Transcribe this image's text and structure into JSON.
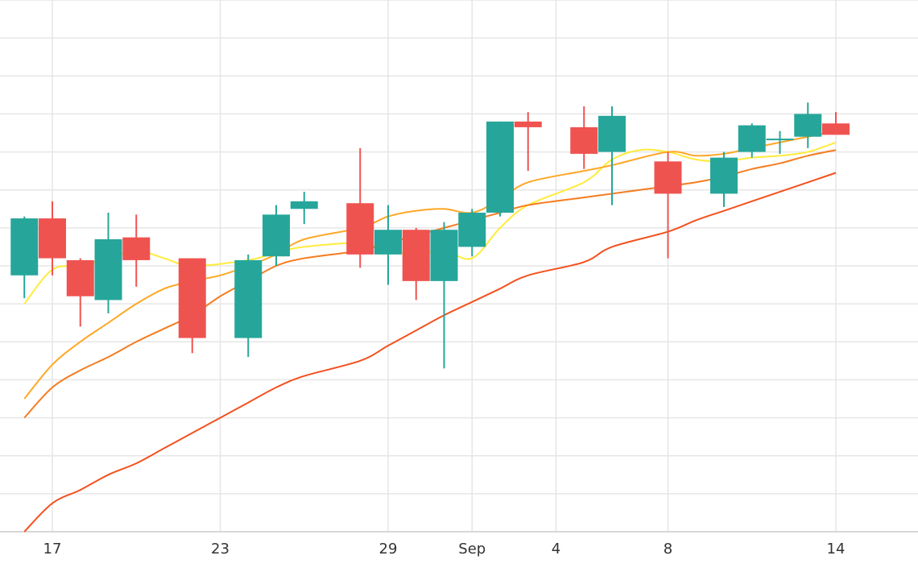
{
  "chart_data": {
    "type": "candlestick",
    "x_ticks": [
      "17",
      "23",
      "29",
      "Sep",
      "4",
      "8",
      "14"
    ],
    "x_tick_dates": [
      "2023-08-17",
      "2023-08-23",
      "2023-08-29",
      "2023-09-01",
      "2023-09-04",
      "2023-09-08",
      "2023-09-14"
    ],
    "ylim": [
      0,
      14
    ],
    "grid": true,
    "colors": {
      "up": "#26a69a",
      "down": "#ef5350",
      "grid": "#e6e6e6",
      "ma_fast": "#ffeb3b",
      "ma_mid": "#ffa726",
      "ma_slow": "#f57c1f",
      "ma_slowest": "#f4511e"
    },
    "candles": [
      {
        "date": "2023-08-16",
        "open": 6.75,
        "high": 8.3,
        "low": 6.15,
        "close": 8.25
      },
      {
        "date": "2023-08-17",
        "open": 8.25,
        "high": 8.7,
        "low": 6.75,
        "close": 7.2
      },
      {
        "date": "2023-08-18",
        "open": 7.15,
        "high": 7.2,
        "low": 5.4,
        "close": 6.2
      },
      {
        "date": "2023-08-19",
        "open": 6.1,
        "high": 8.4,
        "low": 5.75,
        "close": 7.7
      },
      {
        "date": "2023-08-20",
        "open": 7.75,
        "high": 8.35,
        "low": 6.45,
        "close": 7.15
      },
      {
        "date": "2023-08-22",
        "open": 7.2,
        "high": 7.2,
        "low": 4.7,
        "close": 5.1
      },
      {
        "date": "2023-08-24",
        "open": 5.1,
        "high": 7.3,
        "low": 4.6,
        "close": 7.15
      },
      {
        "date": "2023-08-25",
        "open": 7.25,
        "high": 8.6,
        "low": 7.0,
        "close": 8.35
      },
      {
        "date": "2023-08-26",
        "open": 8.5,
        "high": 8.95,
        "low": 8.1,
        "close": 8.7
      },
      {
        "date": "2023-08-28",
        "open": 8.65,
        "high": 10.1,
        "low": 6.95,
        "close": 7.3
      },
      {
        "date": "2023-08-29",
        "open": 7.3,
        "high": 8.6,
        "low": 6.5,
        "close": 7.95
      },
      {
        "date": "2023-08-30",
        "open": 7.95,
        "high": 8.0,
        "low": 6.1,
        "close": 6.6
      },
      {
        "date": "2023-08-31",
        "open": 6.6,
        "high": 8.15,
        "low": 4.3,
        "close": 7.95
      },
      {
        "date": "2023-09-01",
        "open": 7.5,
        "high": 8.5,
        "low": 7.25,
        "close": 8.4
      },
      {
        "date": "2023-09-02",
        "open": 8.4,
        "high": 10.8,
        "low": 8.3,
        "close": 10.8
      },
      {
        "date": "2023-09-03",
        "open": 10.8,
        "high": 11.05,
        "low": 9.5,
        "close": 10.65
      },
      {
        "date": "2023-09-05",
        "open": 10.65,
        "high": 11.2,
        "low": 9.55,
        "close": 9.95
      },
      {
        "date": "2023-09-06",
        "open": 10.0,
        "high": 11.2,
        "low": 8.6,
        "close": 10.95
      },
      {
        "date": "2023-09-08",
        "open": 9.75,
        "high": 10.0,
        "low": 7.2,
        "close": 8.9
      },
      {
        "date": "2023-09-10",
        "open": 8.9,
        "high": 10.0,
        "low": 8.55,
        "close": 9.85
      },
      {
        "date": "2023-09-11",
        "open": 10.0,
        "high": 10.75,
        "low": 9.85,
        "close": 10.7
      },
      {
        "date": "2023-09-12",
        "open": 10.35,
        "high": 10.55,
        "low": 9.95,
        "close": 10.35
      },
      {
        "date": "2023-09-13",
        "open": 10.4,
        "high": 11.3,
        "low": 10.1,
        "close": 11.0
      },
      {
        "date": "2023-09-14",
        "open": 10.75,
        "high": 11.05,
        "low": 10.55,
        "close": 10.45
      }
    ],
    "moving_averages": [
      {
        "color": "#ffeb3b",
        "points": [
          [
            "2023-08-16",
            6.0
          ],
          [
            "2023-08-17",
            6.9
          ],
          [
            "2023-08-18",
            7.0
          ],
          [
            "2023-08-19",
            7.2
          ],
          [
            "2023-08-20",
            7.4
          ],
          [
            "2023-08-21",
            7.2
          ],
          [
            "2023-08-22",
            7.0
          ],
          [
            "2023-08-24",
            7.15
          ],
          [
            "2023-08-25",
            7.35
          ],
          [
            "2023-08-26",
            7.5
          ],
          [
            "2023-08-28",
            7.6
          ],
          [
            "2023-08-29",
            7.4
          ],
          [
            "2023-08-30",
            7.3
          ],
          [
            "2023-08-31",
            7.4
          ],
          [
            "2023-09-01",
            7.2
          ],
          [
            "2023-09-02",
            8.0
          ],
          [
            "2023-09-03",
            8.6
          ],
          [
            "2023-09-05",
            9.2
          ],
          [
            "2023-09-06",
            9.8
          ],
          [
            "2023-09-07",
            10.05
          ],
          [
            "2023-09-08",
            10.0
          ],
          [
            "2023-09-09",
            9.8
          ],
          [
            "2023-09-10",
            9.75
          ],
          [
            "2023-09-11",
            9.85
          ],
          [
            "2023-09-12",
            9.9
          ],
          [
            "2023-09-13",
            10.0
          ],
          [
            "2023-09-14",
            10.25
          ]
        ]
      },
      {
        "color": "#ffa726",
        "points": [
          [
            "2023-08-16",
            3.5
          ],
          [
            "2023-08-17",
            4.4
          ],
          [
            "2023-08-18",
            5.0
          ],
          [
            "2023-08-19",
            5.5
          ],
          [
            "2023-08-20",
            6.0
          ],
          [
            "2023-08-21",
            6.4
          ],
          [
            "2023-08-22",
            6.6
          ],
          [
            "2023-08-23",
            6.75
          ],
          [
            "2023-08-24",
            7.0
          ],
          [
            "2023-08-25",
            7.3
          ],
          [
            "2023-08-26",
            7.7
          ],
          [
            "2023-08-28",
            8.0
          ],
          [
            "2023-08-29",
            8.3
          ],
          [
            "2023-08-30",
            8.45
          ],
          [
            "2023-08-31",
            8.5
          ],
          [
            "2023-09-01",
            8.4
          ],
          [
            "2023-09-02",
            8.75
          ],
          [
            "2023-09-03",
            9.2
          ],
          [
            "2023-09-05",
            9.5
          ],
          [
            "2023-09-06",
            9.65
          ],
          [
            "2023-09-08",
            10.0
          ],
          [
            "2023-09-09",
            9.9
          ],
          [
            "2023-09-10",
            9.95
          ],
          [
            "2023-09-11",
            10.1
          ],
          [
            "2023-09-12",
            10.25
          ],
          [
            "2023-09-13",
            10.4
          ],
          [
            "2023-09-14",
            10.55
          ]
        ]
      },
      {
        "color": "#f57c1f",
        "points": [
          [
            "2023-08-16",
            3.0
          ],
          [
            "2023-08-17",
            3.8
          ],
          [
            "2023-08-18",
            4.25
          ],
          [
            "2023-08-19",
            4.6
          ],
          [
            "2023-08-20",
            5.0
          ],
          [
            "2023-08-21",
            5.35
          ],
          [
            "2023-08-22",
            5.7
          ],
          [
            "2023-08-23",
            6.2
          ],
          [
            "2023-08-24",
            6.6
          ],
          [
            "2023-08-25",
            7.0
          ],
          [
            "2023-08-26",
            7.2
          ],
          [
            "2023-08-28",
            7.4
          ],
          [
            "2023-08-29",
            7.6
          ],
          [
            "2023-08-30",
            7.8
          ],
          [
            "2023-08-31",
            8.0
          ],
          [
            "2023-09-01",
            8.2
          ],
          [
            "2023-09-02",
            8.4
          ],
          [
            "2023-09-03",
            8.6
          ],
          [
            "2023-09-05",
            8.8
          ],
          [
            "2023-09-06",
            8.9
          ],
          [
            "2023-09-08",
            9.1
          ],
          [
            "2023-09-09",
            9.2
          ],
          [
            "2023-09-10",
            9.35
          ],
          [
            "2023-09-11",
            9.55
          ],
          [
            "2023-09-12",
            9.7
          ],
          [
            "2023-09-13",
            9.9
          ],
          [
            "2023-09-14",
            10.05
          ]
        ]
      },
      {
        "color": "#f4511e",
        "points": [
          [
            "2023-08-16",
            0.0
          ],
          [
            "2023-08-17",
            0.75
          ],
          [
            "2023-08-18",
            1.1
          ],
          [
            "2023-08-19",
            1.5
          ],
          [
            "2023-08-20",
            1.8
          ],
          [
            "2023-08-21",
            2.2
          ],
          [
            "2023-08-22",
            2.6
          ],
          [
            "2023-08-23",
            3.0
          ],
          [
            "2023-08-24",
            3.4
          ],
          [
            "2023-08-25",
            3.8
          ],
          [
            "2023-08-26",
            4.1
          ],
          [
            "2023-08-28",
            4.5
          ],
          [
            "2023-08-29",
            4.9
          ],
          [
            "2023-08-30",
            5.3
          ],
          [
            "2023-08-31",
            5.7
          ],
          [
            "2023-09-01",
            6.05
          ],
          [
            "2023-09-02",
            6.4
          ],
          [
            "2023-09-03",
            6.75
          ],
          [
            "2023-09-05",
            7.1
          ],
          [
            "2023-09-06",
            7.5
          ],
          [
            "2023-09-08",
            7.9
          ],
          [
            "2023-09-09",
            8.2
          ],
          [
            "2023-09-10",
            8.45
          ],
          [
            "2023-09-11",
            8.7
          ],
          [
            "2023-09-12",
            8.95
          ],
          [
            "2023-09-13",
            9.2
          ],
          [
            "2023-09-14",
            9.45
          ]
        ]
      }
    ]
  }
}
